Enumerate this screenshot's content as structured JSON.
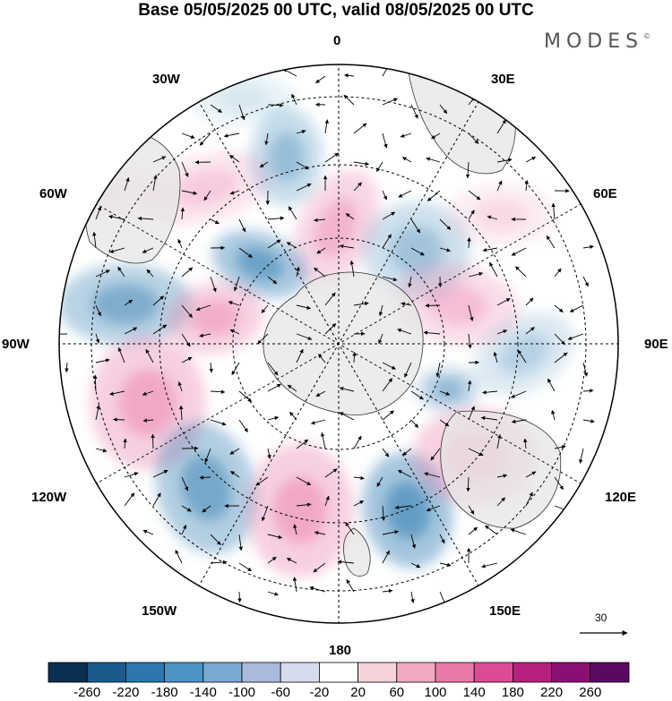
{
  "title": "Base 05/05/2025 00 UTC, valid 08/05/2025 00 UTC",
  "brand": "MODES",
  "brand_mark": "©",
  "longitude_labels": {
    "top": "0",
    "top_right": "30E",
    "right_upper": "60E",
    "right": "90E",
    "right_lower": "120E",
    "bottom_right": "150E",
    "bottom": "180",
    "bottom_left": "150W",
    "left_lower": "120W",
    "left": "90W",
    "left_upper": "60W",
    "top_left": "30W"
  },
  "reference_vector": {
    "label": "30"
  },
  "colorbar": {
    "labels": [
      "-260",
      "-220",
      "-180",
      "-140",
      "-100",
      "-60",
      "-20",
      "20",
      "60",
      "100",
      "140",
      "180",
      "220",
      "260"
    ],
    "colors": [
      "#0b2f52",
      "#1a5a8a",
      "#2a78ae",
      "#4b95c6",
      "#7aa9d2",
      "#aab9dc",
      "#d6dbed",
      "#ffffff",
      "#f6d3d8",
      "#f0aabf",
      "#e97aa8",
      "#dc4c95",
      "#b8207f",
      "#8b0f72",
      "#5a0a5e"
    ]
  },
  "map": {
    "projection": "south polar stereographic",
    "ocean_color": "#ffffff",
    "land_color": "#e6e6e6",
    "positive_anomaly_color": "#e97aa8",
    "negative_anomaly_color": "#2a78ae"
  }
}
